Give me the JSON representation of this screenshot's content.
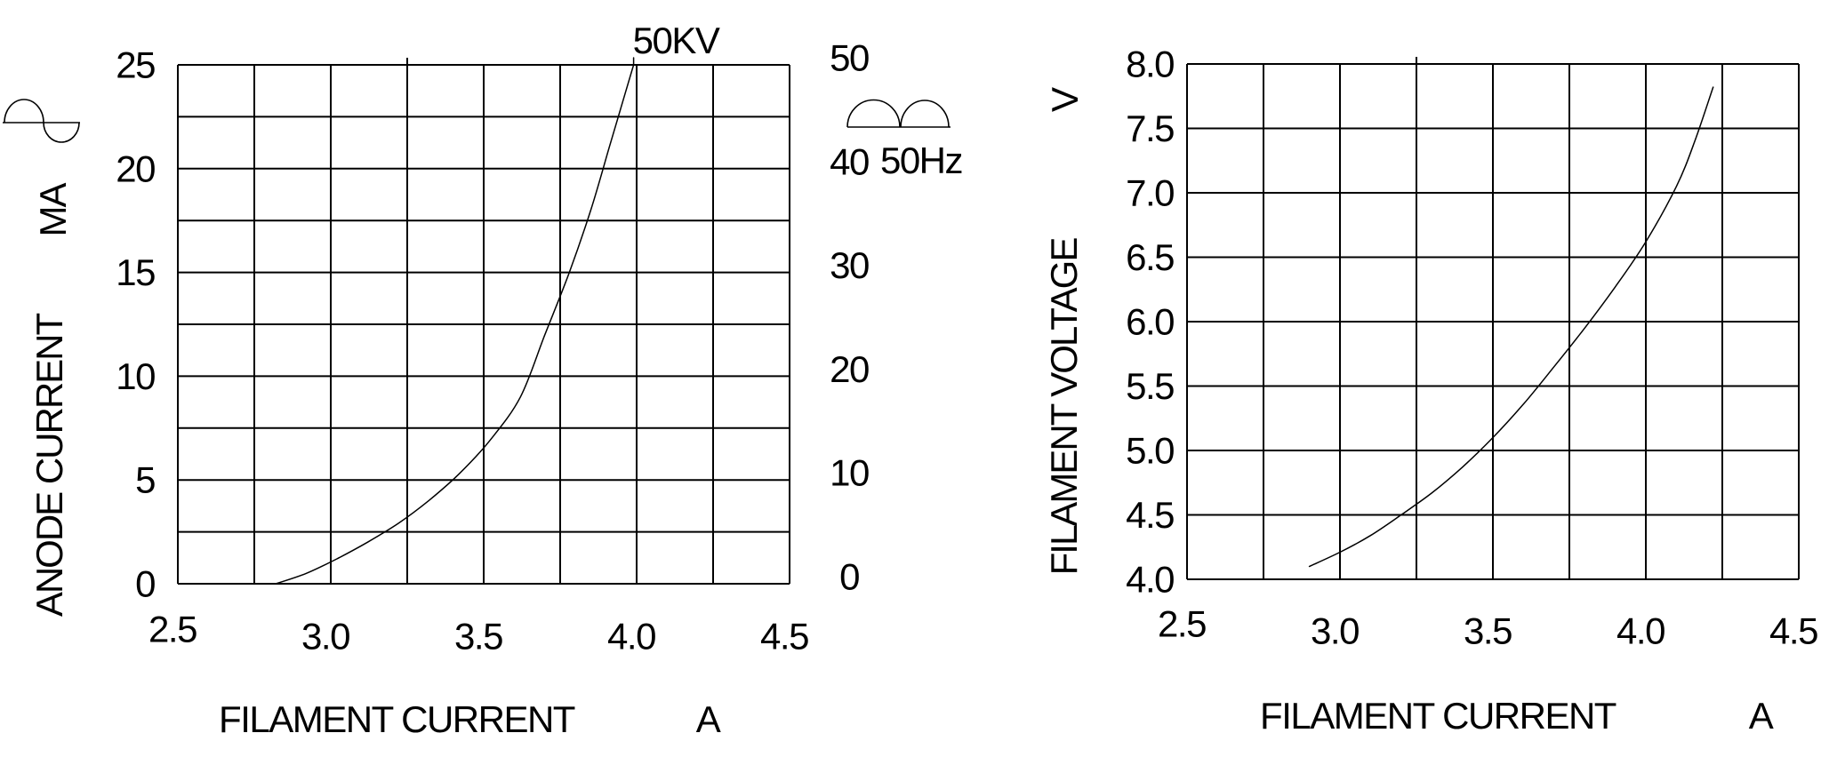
{
  "figure": {
    "background_color": "#ffffff",
    "line_color": "#000000",
    "description_visible_text_only": true
  },
  "chart_data": [
    {
      "type": "line",
      "title": "",
      "grid": true,
      "x_axis": {
        "label": "FILAMENT CURRENT",
        "unit": "A",
        "xlim": [
          2.5,
          4.5
        ],
        "grid_step": 0.25,
        "tick_labels": [
          "2.5",
          "3.0",
          "3.5",
          "4.0",
          "4.5"
        ],
        "tick_values": [
          2.5,
          3.0,
          3.5,
          4.0,
          4.5
        ]
      },
      "y_axis": {
        "label": "ANODE CURRENT",
        "unit": "MA",
        "ylim": [
          0,
          25
        ],
        "grid_step": 2.5,
        "tick_labels": [
          "0",
          "5",
          "10",
          "15",
          "20",
          "25"
        ],
        "tick_values": [
          0,
          5,
          10,
          15,
          20,
          25
        ]
      },
      "right_axis": {
        "ylim": [
          0,
          50
        ],
        "tick_labels": [
          "0",
          "10",
          "20",
          "30",
          "40",
          "50"
        ],
        "tick_values": [
          0,
          10,
          20,
          30,
          40,
          50
        ],
        "annotation": "50Hz"
      },
      "icons": [
        {
          "name": "sine-wave",
          "meaning": "AC supply waveform"
        },
        {
          "name": "full-wave-rectified",
          "meaning": "full-wave rectified waveform",
          "label": "50Hz"
        }
      ],
      "series": [
        {
          "name": "50KV",
          "points": [
            [
              2.82,
              0.0
            ],
            [
              2.92,
              0.5
            ],
            [
              3.02,
              1.2
            ],
            [
              3.12,
              2.0
            ],
            [
              3.22,
              2.9
            ],
            [
              3.32,
              4.0
            ],
            [
              3.42,
              5.3
            ],
            [
              3.52,
              6.9
            ],
            [
              3.62,
              9.0
            ],
            [
              3.7,
              12.0
            ],
            [
              3.78,
              15.0
            ],
            [
              3.85,
              18.0
            ],
            [
              3.91,
              21.0
            ],
            [
              3.95,
              23.0
            ],
            [
              3.99,
              25.0
            ]
          ]
        }
      ]
    },
    {
      "type": "line",
      "title": "",
      "grid": true,
      "x_axis": {
        "label": "FILAMENT CURRENT",
        "unit": "A",
        "xlim": [
          2.5,
          4.5
        ],
        "grid_step": 0.25,
        "tick_labels": [
          "2.5",
          "3.0",
          "3.5",
          "4.0",
          "4.5"
        ],
        "tick_values": [
          2.5,
          3.0,
          3.5,
          4.0,
          4.5
        ]
      },
      "y_axis": {
        "label": "FILAMENT VOLTAGE",
        "unit": "V",
        "ylim": [
          4.0,
          8.0
        ],
        "grid_step": 0.5,
        "tick_labels": [
          "4.0",
          "4.5",
          "5.0",
          "5.5",
          "6.0",
          "6.5",
          "7.0",
          "7.5",
          "8.0"
        ],
        "tick_values": [
          4.0,
          4.5,
          5.0,
          5.5,
          6.0,
          6.5,
          7.0,
          7.5,
          8.0
        ]
      },
      "series": [
        {
          "name": "",
          "points": [
            [
              2.9,
              4.1
            ],
            [
              3.0,
              4.21
            ],
            [
              3.1,
              4.34
            ],
            [
              3.2,
              4.5
            ],
            [
              3.3,
              4.67
            ],
            [
              3.4,
              4.87
            ],
            [
              3.5,
              5.1
            ],
            [
              3.6,
              5.36
            ],
            [
              3.7,
              5.65
            ],
            [
              3.8,
              5.95
            ],
            [
              3.9,
              6.27
            ],
            [
              4.0,
              6.62
            ],
            [
              4.1,
              7.05
            ],
            [
              4.16,
              7.4
            ],
            [
              4.22,
              7.82
            ]
          ]
        }
      ]
    }
  ]
}
